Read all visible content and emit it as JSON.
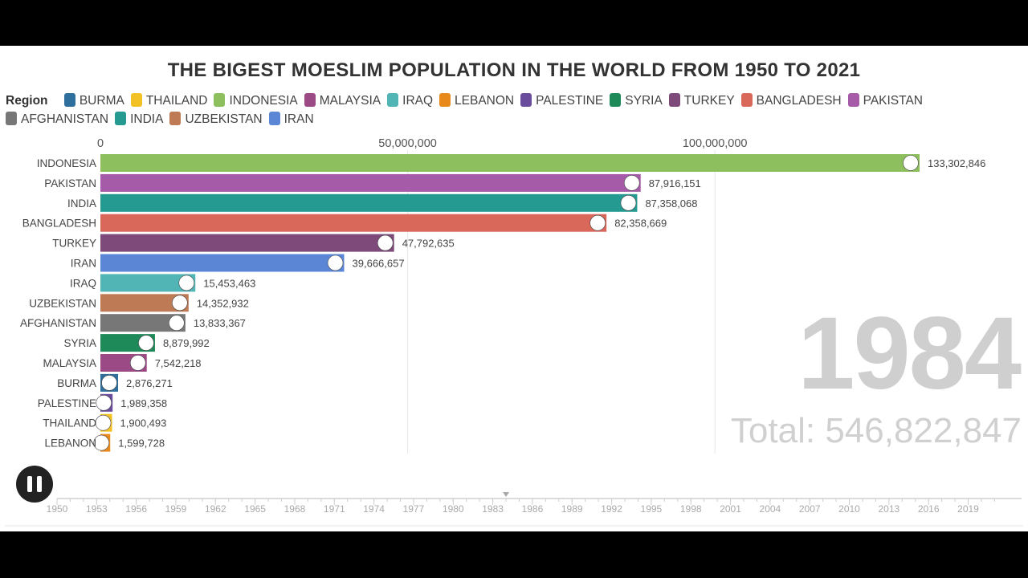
{
  "title": "THE BIGEST MOESLIM POPULATION IN THE WORLD FROM 1950 TO 2021",
  "legend": {
    "label": "Region",
    "items": [
      {
        "name": "BURMA",
        "color": "#2e6f9e"
      },
      {
        "name": "THAILAND",
        "color": "#f2c224"
      },
      {
        "name": "INDONESIA",
        "color": "#8dbf5f"
      },
      {
        "name": "MALAYSIA",
        "color": "#9b4a86"
      },
      {
        "name": "IRAQ",
        "color": "#52b5b5"
      },
      {
        "name": "LEBANON",
        "color": "#e8891c"
      },
      {
        "name": "PALESTINE",
        "color": "#6a4c9c"
      },
      {
        "name": "SYRIA",
        "color": "#1e8a5a"
      },
      {
        "name": "TURKEY",
        "color": "#7d4a7a"
      },
      {
        "name": "BANGLADESH",
        "color": "#d9675a"
      },
      {
        "name": "PAKISTAN",
        "color": "#a65ba8"
      },
      {
        "name": "AFGHANISTAN",
        "color": "#777777"
      },
      {
        "name": "INDIA",
        "color": "#249a91"
      },
      {
        "name": "UZBEKISTAN",
        "color": "#bd7a54"
      },
      {
        "name": "IRAN",
        "color": "#5b86d6"
      }
    ]
  },
  "year": "1984",
  "total": "Total: 546,822,847",
  "play_state_icon": "pause-icon",
  "chart_data": {
    "type": "bar",
    "orientation": "horizontal",
    "xlim": [
      0,
      133302846
    ],
    "x_ticks": [
      0,
      50000000,
      100000000
    ],
    "x_tick_labels": [
      "0",
      "50,000,000",
      "100,000,000"
    ],
    "categories": [
      "INDONESIA",
      "PAKISTAN",
      "INDIA",
      "BANGLADESH",
      "TURKEY",
      "IRAN",
      "IRAQ",
      "UZBEKISTAN",
      "AFGHANISTAN",
      "SYRIA",
      "MALAYSIA",
      "BURMA",
      "PALESTINE",
      "THAILAND",
      "LEBANON"
    ],
    "values": [
      133302846,
      87916151,
      87358068,
      82358669,
      47792635,
      39666657,
      15453463,
      14352932,
      13833367,
      8879992,
      7542218,
      2876271,
      1989358,
      1900493,
      1599728
    ],
    "value_labels": [
      "133,302,846",
      "87,916,151",
      "87,358,068",
      "82,358,669",
      "47,792,635",
      "39,666,657",
      "15,453,463",
      "14,352,932",
      "13,833,367",
      "8,879,992",
      "7,542,218",
      "2,876,271",
      "1,989,358",
      "1,900,493",
      "1,599,728"
    ],
    "colors": [
      "#8dbf5f",
      "#a65ba8",
      "#249a91",
      "#d9675a",
      "#7d4a7a",
      "#5b86d6",
      "#52b5b5",
      "#bd7a54",
      "#777777",
      "#1e8a5a",
      "#9b4a86",
      "#2e6f9e",
      "#6a4c9c",
      "#f2c224",
      "#e8891c"
    ]
  },
  "timeline": {
    "labels": [
      "1950",
      "1953",
      "1956",
      "1959",
      "1962",
      "1965",
      "1968",
      "1971",
      "1974",
      "1977",
      "1980",
      "1983",
      "1986",
      "1989",
      "1992",
      "1995",
      "1998",
      "2001",
      "2004",
      "2007",
      "2010",
      "2013",
      "2016",
      "2019"
    ],
    "start": 1950,
    "end": 2021,
    "current": 1984
  }
}
